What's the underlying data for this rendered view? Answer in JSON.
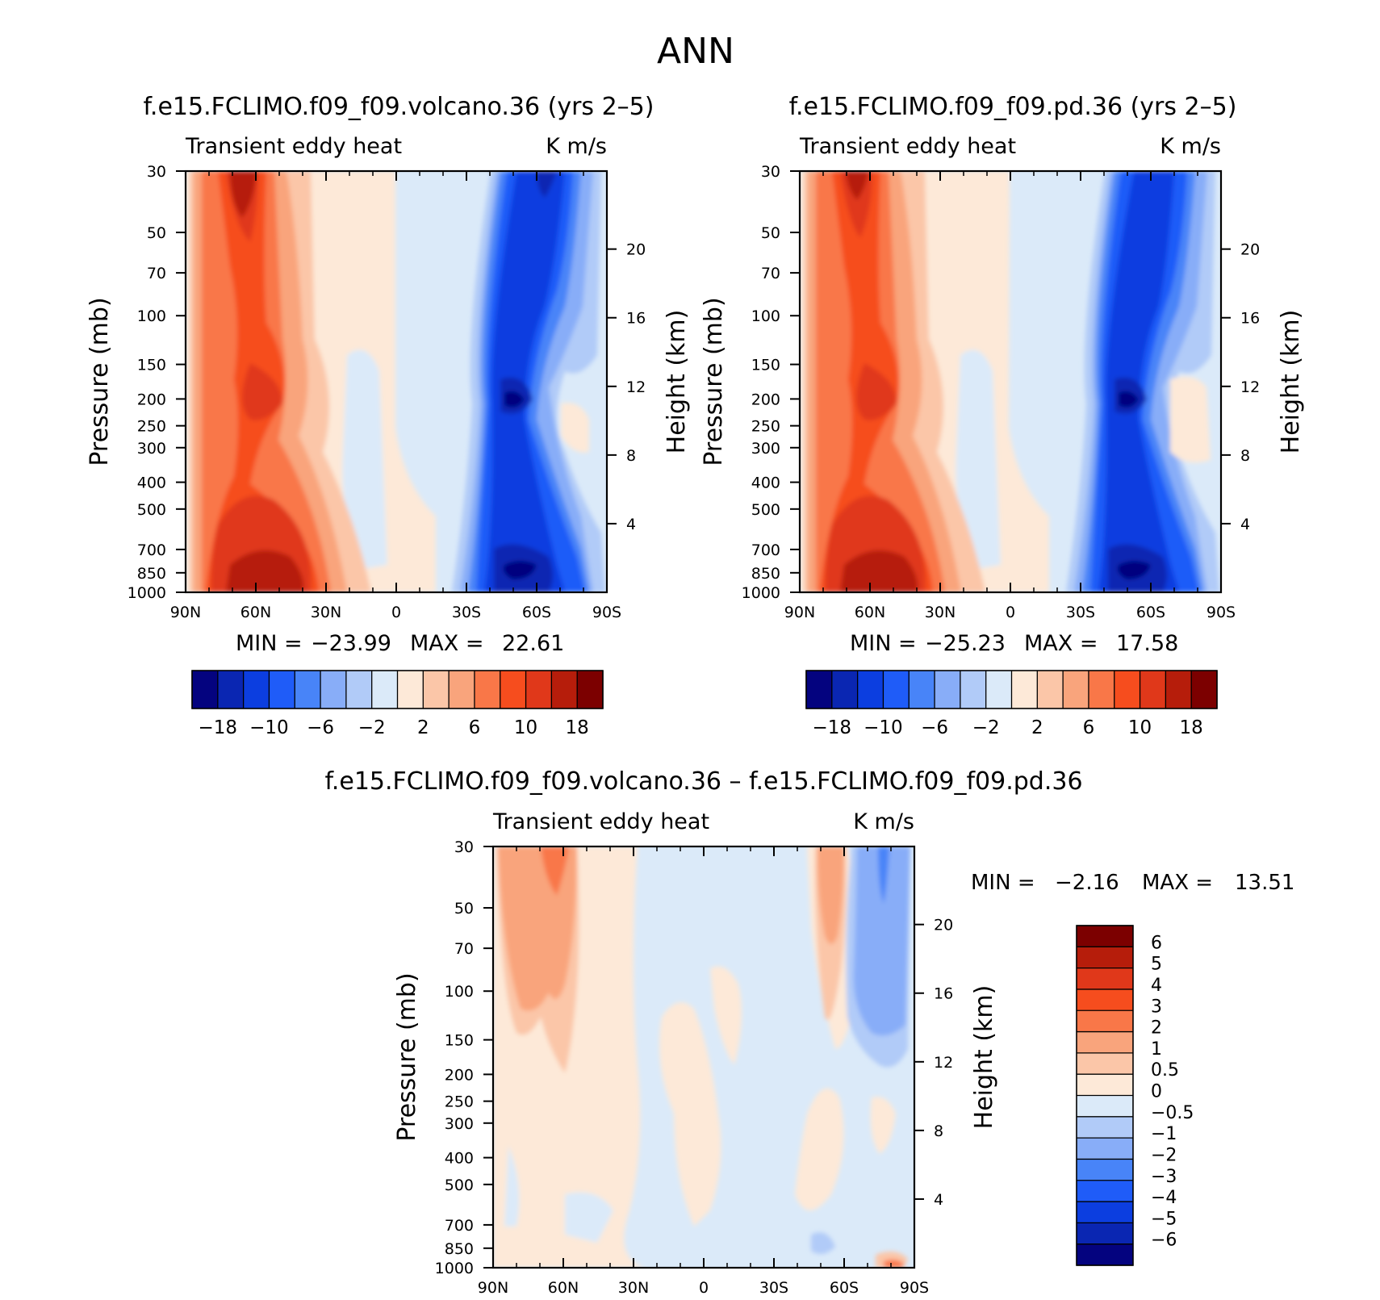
{
  "figure_title": "ANN",
  "chart_data": [
    {
      "type": "heatmap",
      "title": "f.e15.FCLIMO.f09_f09.volcano.36 (yrs 2–5)",
      "left_string": "Transient eddy heat",
      "right_string": "K m/s",
      "ylabel": "Pressure (mb)",
      "y2label": "Height (km)",
      "x_ticks": [
        "90N",
        "60N",
        "30N",
        "0",
        "30S",
        "60S",
        "90S"
      ],
      "x_range": [
        90,
        -90
      ],
      "y_ticks": [
        "30",
        "50",
        "70",
        "100",
        "150",
        "200",
        "250",
        "300",
        "400",
        "500",
        "700",
        "850",
        "1000"
      ],
      "y_range": [
        1000,
        30
      ],
      "y2_ticks": [
        "20",
        "16",
        "12",
        "8",
        "4"
      ],
      "stats": {
        "min_label": "MIN =",
        "min": "−23.99",
        "max_label": "MAX =",
        "max": "22.61"
      },
      "contour_levels": [
        "−18",
        "−10",
        "−6",
        "−2",
        "2",
        "6",
        "10",
        "18"
      ],
      "features": [
        {
          "kind": "max",
          "lat": 62,
          "p_top": 30,
          "p_bottom": 90,
          "peak": 18
        },
        {
          "kind": "max",
          "lat": 55,
          "p_top": 150,
          "p_bottom": 300,
          "peak": 10
        },
        {
          "kind": "max",
          "lat": 52,
          "p_top": 600,
          "p_bottom": 1000,
          "peak": 22
        },
        {
          "kind": "min",
          "lat": -63,
          "p_top": 30,
          "p_bottom": 60,
          "peak": -18
        },
        {
          "kind": "min",
          "lat": -55,
          "p_top": 150,
          "p_bottom": 300,
          "peak": -18
        },
        {
          "kind": "min",
          "lat": -53,
          "p_top": 700,
          "p_bottom": 1000,
          "peak": -23
        }
      ]
    },
    {
      "type": "heatmap",
      "title": "f.e15.FCLIMO.f09_f09.pd.36 (yrs 2–5)",
      "left_string": "Transient eddy heat",
      "right_string": "K m/s",
      "ylabel": "Pressure (mb)",
      "y2label": "Height (km)",
      "x_ticks": [
        "90N",
        "60N",
        "30N",
        "0",
        "30S",
        "60S",
        "90S"
      ],
      "x_range": [
        90,
        -90
      ],
      "y_ticks": [
        "30",
        "50",
        "70",
        "100",
        "150",
        "200",
        "250",
        "300",
        "400",
        "500",
        "700",
        "850",
        "1000"
      ],
      "y_range": [
        1000,
        30
      ],
      "y2_ticks": [
        "20",
        "16",
        "12",
        "8",
        "4"
      ],
      "stats": {
        "min_label": "MIN =",
        "min": "−25.23",
        "max_label": "MAX =",
        "max": "17.58"
      },
      "contour_levels": [
        "−18",
        "−10",
        "−6",
        "−2",
        "2",
        "6",
        "10",
        "18"
      ],
      "features": [
        {
          "kind": "max",
          "lat": 62,
          "p_top": 30,
          "p_bottom": 90,
          "peak": 14
        },
        {
          "kind": "max",
          "lat": 55,
          "p_top": 150,
          "p_bottom": 300,
          "peak": 10
        },
        {
          "kind": "max",
          "lat": 52,
          "p_top": 600,
          "p_bottom": 1000,
          "peak": 17
        },
        {
          "kind": "min",
          "lat": -63,
          "p_top": 30,
          "p_bottom": 60,
          "peak": -12
        },
        {
          "kind": "min",
          "lat": -55,
          "p_top": 150,
          "p_bottom": 300,
          "peak": -18
        },
        {
          "kind": "min",
          "lat": -53,
          "p_top": 700,
          "p_bottom": 1000,
          "peak": -25
        }
      ]
    },
    {
      "type": "heatmap",
      "title": "f.e15.FCLIMO.f09_f09.volcano.36 – f.e15.FCLIMO.f09_f09.pd.36",
      "left_string": "Transient eddy heat",
      "right_string": "K m/s",
      "ylabel": "Pressure (mb)",
      "y2label": "Height (km)",
      "x_ticks": [
        "90N",
        "60N",
        "30N",
        "0",
        "30S",
        "60S",
        "90S"
      ],
      "x_range": [
        90,
        -90
      ],
      "y_ticks": [
        "30",
        "50",
        "70",
        "100",
        "150",
        "200",
        "250",
        "300",
        "400",
        "500",
        "700",
        "850",
        "1000"
      ],
      "y_range": [
        1000,
        30
      ],
      "y2_ticks": [
        "20",
        "16",
        "12",
        "8",
        "4"
      ],
      "stats": {
        "min_label": "MIN =",
        "min": "−2.16",
        "max_label": "MAX =",
        "max": "13.51"
      },
      "contour_levels": [
        "6",
        "5",
        "4",
        "3",
        "2",
        "1",
        "0.5",
        "0",
        "−0.5",
        "−1",
        "−2",
        "−3",
        "−4",
        "−5",
        "−6"
      ],
      "features": [
        {
          "kind": "max",
          "lat": 62,
          "p_top": 30,
          "p_bottom": 300,
          "peak": 2
        },
        {
          "kind": "max",
          "lat": -50,
          "p_top": 30,
          "p_bottom": 150,
          "peak": 2
        },
        {
          "kind": "min",
          "lat": -75,
          "p_top": 30,
          "p_bottom": 250,
          "peak": -2
        },
        {
          "kind": "max",
          "lat": -82,
          "p_top": 900,
          "p_bottom": 1000,
          "peak": 3
        }
      ]
    }
  ],
  "colorbar": {
    "colors": [
      "#04037f",
      "#0a26b2",
      "#0c3ee0",
      "#1f5cf8",
      "#4884f8",
      "#88adf8",
      "#b1cbf8",
      "#dbeaf9",
      "#fde9d8",
      "#fbc6a8",
      "#f9a47c",
      "#f97748",
      "#f64d1e",
      "#e0381a",
      "#b61d0b",
      "#7c0000"
    ],
    "labels_top": [
      "−18",
      "−10",
      "−6",
      "−2",
      "2",
      "6",
      "10",
      "18"
    ],
    "labels_diff": [
      "6",
      "5",
      "4",
      "3",
      "2",
      "1",
      "0.5",
      "0",
      "−0.5",
      "−1",
      "−2",
      "−3",
      "−4",
      "−5",
      "−6"
    ]
  }
}
